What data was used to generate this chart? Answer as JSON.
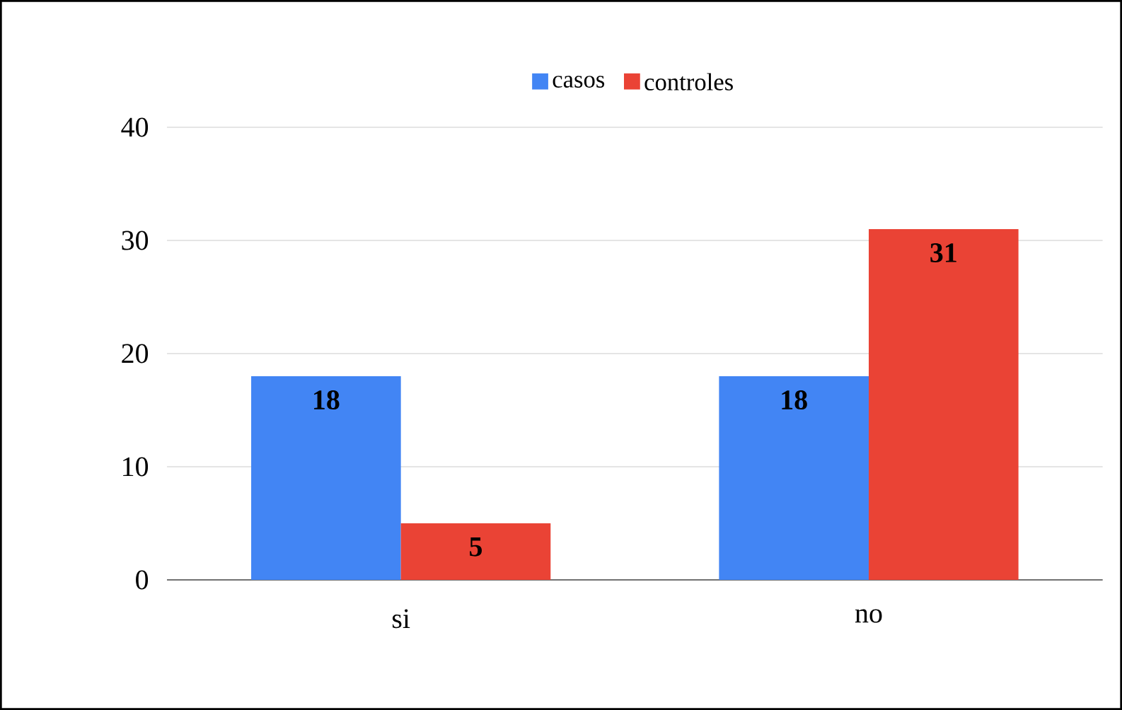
{
  "chart_data": {
    "type": "bar",
    "categories": [
      "si",
      "no"
    ],
    "series": [
      {
        "name": "casos",
        "color": "#4285f4",
        "values": [
          18,
          18
        ]
      },
      {
        "name": "controles",
        "color": "#ea4335",
        "values": [
          5,
          31
        ]
      }
    ],
    "ylim": [
      0,
      40
    ],
    "yticks": [
      0,
      10,
      20,
      30,
      40
    ],
    "grid": "y",
    "legend": "top",
    "data_labels": true
  }
}
